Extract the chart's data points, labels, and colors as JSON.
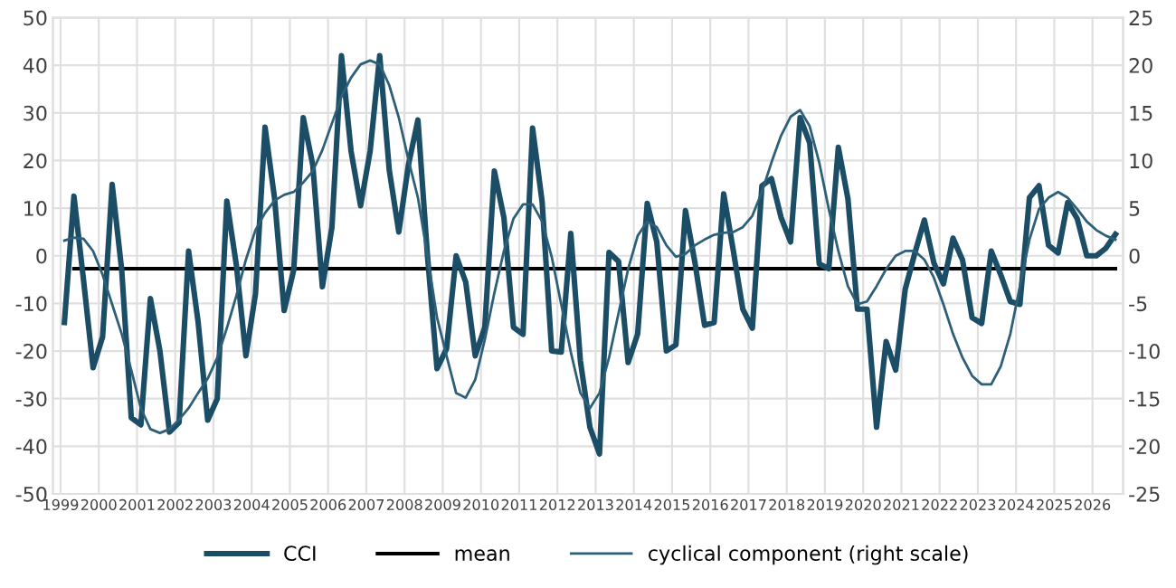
{
  "chart_data": {
    "type": "line",
    "x": [
      1999.1,
      1999.35,
      1999.6,
      1999.85,
      2000.1,
      2000.35,
      2000.6,
      2000.85,
      2001.1,
      2001.35,
      2001.6,
      2001.85,
      2002.1,
      2002.35,
      2002.6,
      2002.85,
      2003.1,
      2003.35,
      2003.6,
      2003.85,
      2004.1,
      2004.35,
      2004.6,
      2004.85,
      2005.1,
      2005.35,
      2005.6,
      2005.85,
      2006.1,
      2006.35,
      2006.6,
      2006.85,
      2007.1,
      2007.35,
      2007.6,
      2007.85,
      2008.1,
      2008.35,
      2008.6,
      2008.85,
      2009.1,
      2009.35,
      2009.6,
      2009.85,
      2010.1,
      2010.35,
      2010.6,
      2010.85,
      2011.1,
      2011.35,
      2011.6,
      2011.85,
      2012.1,
      2012.35,
      2012.6,
      2012.85,
      2013.1,
      2013.35,
      2013.6,
      2013.85,
      2014.1,
      2014.35,
      2014.6,
      2014.85,
      2015.1,
      2015.35,
      2015.6,
      2015.85,
      2016.1,
      2016.35,
      2016.6,
      2016.85,
      2017.1,
      2017.35,
      2017.6,
      2017.85,
      2018.1,
      2018.35,
      2018.6,
      2018.85,
      2019.1,
      2019.35,
      2019.6,
      2019.85,
      2020.1,
      2020.35,
      2020.6,
      2020.85,
      2021.1,
      2021.35,
      2021.6,
      2021.85,
      2022.1,
      2022.35,
      2022.6,
      2022.85,
      2023.1,
      2023.35,
      2023.6,
      2023.85,
      2024.1,
      2024.35,
      2024.6,
      2024.85,
      2025.1,
      2025.35,
      2025.6,
      2025.85,
      2026.1,
      2026.35,
      2026.6
    ],
    "series": [
      {
        "name": "CCI",
        "color": "#1b4d66",
        "values": [
          -14,
          12.5,
          -5,
          -23.5,
          -17,
          15,
          -3,
          -34,
          -35.5,
          -9,
          -20,
          -37,
          -35,
          1,
          -14,
          -34.5,
          -30,
          11.5,
          -2,
          -21,
          -8,
          27,
          12,
          -11.5,
          -3,
          29,
          19,
          -6.5,
          6,
          42,
          22,
          10.5,
          22,
          42,
          18,
          5,
          19,
          28.5,
          0,
          -23.7,
          -19.5,
          0,
          -5.5,
          -21,
          -15,
          17.8,
          8,
          -15,
          -16.5,
          26.8,
          11.3,
          -20,
          -20.2,
          4.7,
          -22,
          -36,
          -41.6,
          0.7,
          -1.2,
          -22.4,
          -16.4,
          11,
          2.9,
          -20,
          -18.7,
          9.5,
          -1.5,
          -14.6,
          -14,
          13,
          1.2,
          -11.2,
          -15.2,
          14.7,
          16.2,
          8.1,
          2.9,
          29,
          23.7,
          -1.7,
          -2.7,
          22.8,
          12,
          -11.2,
          -11.2,
          -36,
          -18,
          -24,
          -7,
          0.5,
          7.5,
          -1.5,
          -5.9,
          3.7,
          -0.9,
          -13,
          -14.2,
          1,
          -4,
          -9.6,
          -10.2,
          12.2,
          14.7,
          2.2,
          0.6,
          11.2,
          7.8,
          0,
          0,
          1.6,
          4.5
        ]
      },
      {
        "name": "mean",
        "color": "#000000",
        "x": [
          1999.35,
          2026.6
        ],
        "values": [
          -2.7,
          -2.7
        ]
      },
      {
        "name": "cyclical component (right scale)",
        "color": "#2e5f78",
        "axis": "y2",
        "values": [
          1.6,
          1.9,
          1.8,
          0.5,
          -2,
          -5.1,
          -8.2,
          -12,
          -16,
          -18.2,
          -18.6,
          -18.2,
          -17.2,
          -16,
          -14.4,
          -12.9,
          -10.7,
          -7.6,
          -4.2,
          -0.4,
          2.7,
          4.5,
          5.8,
          6.4,
          6.7,
          7.7,
          8.9,
          11.1,
          13.9,
          16.7,
          18.7,
          20.1,
          20.5,
          20.1,
          17.9,
          14.5,
          10.1,
          6.1,
          0,
          -6.5,
          -10.5,
          -14.4,
          -14.9,
          -13,
          -8.8,
          -3.9,
          0.5,
          3.9,
          5.4,
          5.4,
          3.6,
          -0.1,
          -5.1,
          -10.1,
          -14.4,
          -16,
          -14.4,
          -10.7,
          -6,
          -1.4,
          2.1,
          3.6,
          3.0,
          1.1,
          -0.1,
          0.2,
          1.1,
          1.7,
          2.2,
          2.4,
          2.5,
          3.0,
          4.2,
          6.7,
          9.8,
          12.6,
          14.6,
          15.3,
          13.6,
          9.8,
          4.9,
          0.5,
          -3.2,
          -5.1,
          -4.8,
          -3.2,
          -1.4,
          0,
          0.5,
          0.5,
          -0.4,
          -2.3,
          -5.1,
          -8.2,
          -10.7,
          -12.6,
          -13.5,
          -13.5,
          -11.6,
          -8.2,
          -3.2,
          1.7,
          4.9,
          6.1,
          6.7,
          6.1,
          4.9,
          3.6,
          2.7,
          2.1,
          1.7
        ]
      }
    ],
    "xlim": [
      1998.8,
      2026.8
    ],
    "xticks": [
      1999,
      2000,
      2001,
      2002,
      2003,
      2004,
      2005,
      2006,
      2007,
      2008,
      2009,
      2010,
      2011,
      2012,
      2013,
      2014,
      2015,
      2016,
      2017,
      2018,
      2019,
      2020,
      2021,
      2022,
      2023,
      2024,
      2025,
      2026
    ],
    "ylim": [
      -50,
      50
    ],
    "yticks": [
      -50,
      -40,
      -30,
      -20,
      -10,
      0,
      10,
      20,
      30,
      40,
      50
    ],
    "y2lim": [
      -25,
      25
    ],
    "y2ticks": [
      -25,
      -20,
      -15,
      -10,
      -5,
      0,
      5,
      10,
      15,
      20,
      25
    ],
    "grid": true,
    "legend": "bottom",
    "marker": "none",
    "line_style": "solid"
  }
}
